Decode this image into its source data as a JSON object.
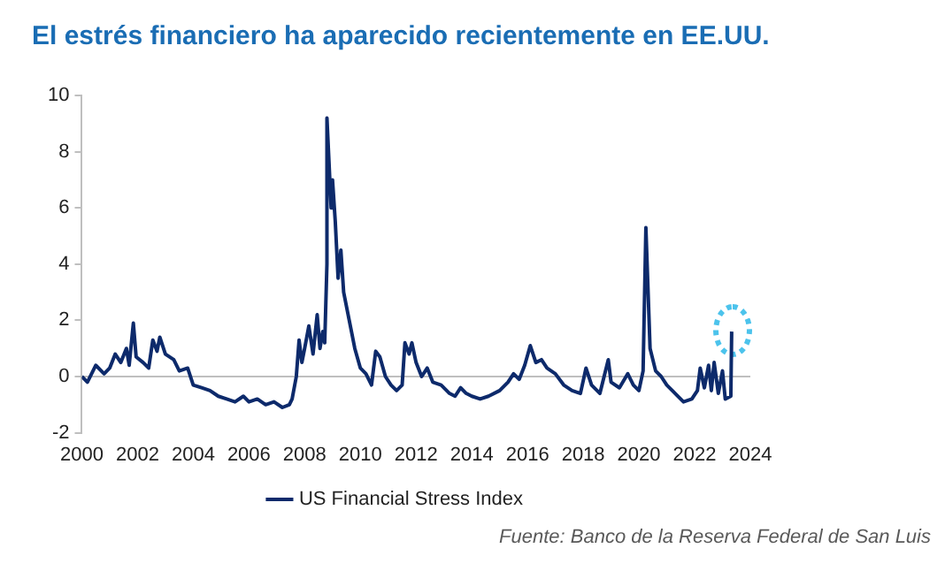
{
  "chart_data": {
    "type": "line",
    "title": "El estrés financiero ha aparecido recientemente en EE.UU.",
    "x": [
      2000.0,
      2000.2,
      2000.5,
      2000.8,
      2001.0,
      2001.2,
      2001.4,
      2001.6,
      2001.7,
      2001.85,
      2001.95,
      2002.2,
      2002.4,
      2002.55,
      2002.7,
      2002.8,
      2003.0,
      2003.3,
      2003.5,
      2003.8,
      2004.0,
      2004.3,
      2004.6,
      2004.9,
      2005.2,
      2005.5,
      2005.8,
      2006.0,
      2006.3,
      2006.6,
      2006.9,
      2007.2,
      2007.45,
      2007.55,
      2007.7,
      2007.8,
      2007.9,
      2008.0,
      2008.15,
      2008.3,
      2008.45,
      2008.55,
      2008.65,
      2008.72,
      2008.8,
      2008.8,
      2008.95,
      2009.0,
      2009.1,
      2009.2,
      2009.3,
      2009.4,
      2009.6,
      2009.8,
      2010.0,
      2010.2,
      2010.4,
      2010.55,
      2010.7,
      2010.9,
      2011.1,
      2011.3,
      2011.5,
      2011.6,
      2011.75,
      2011.85,
      2012.0,
      2012.2,
      2012.4,
      2012.6,
      2012.9,
      2013.2,
      2013.4,
      2013.6,
      2013.8,
      2014.0,
      2014.3,
      2014.6,
      2015.0,
      2015.3,
      2015.5,
      2015.7,
      2015.9,
      2016.1,
      2016.3,
      2016.5,
      2016.7,
      2017.0,
      2017.3,
      2017.6,
      2017.9,
      2018.1,
      2018.3,
      2018.6,
      2018.9,
      2019.0,
      2019.3,
      2019.6,
      2019.8,
      2020.0,
      2020.15,
      2020.25,
      2020.4,
      2020.6,
      2020.8,
      2021.0,
      2021.3,
      2021.6,
      2021.9,
      2022.1,
      2022.2,
      2022.35,
      2022.5,
      2022.6,
      2022.7,
      2022.85,
      2023.0,
      2023.1,
      2023.3,
      2023.33
    ],
    "series": [
      {
        "name": "US Financial Stress Index",
        "color": "#0d2a6b",
        "values": [
          0.0,
          -0.2,
          0.4,
          0.1,
          0.3,
          0.8,
          0.5,
          1.0,
          0.4,
          1.9,
          0.7,
          0.5,
          0.3,
          1.3,
          0.9,
          1.4,
          0.8,
          0.6,
          0.2,
          0.3,
          -0.3,
          -0.4,
          -0.5,
          -0.7,
          -0.8,
          -0.9,
          -0.7,
          -0.9,
          -0.8,
          -1.0,
          -0.9,
          -1.1,
          -1.0,
          -0.8,
          0.0,
          1.3,
          0.5,
          1.0,
          1.8,
          0.8,
          2.2,
          1.0,
          1.6,
          1.2,
          4.0,
          9.2,
          6.0,
          7.0,
          5.5,
          3.5,
          4.5,
          3.0,
          2.0,
          1.0,
          0.3,
          0.1,
          -0.3,
          0.9,
          0.7,
          0.0,
          -0.3,
          -0.5,
          -0.3,
          1.2,
          0.8,
          1.2,
          0.5,
          0.0,
          0.3,
          -0.2,
          -0.3,
          -0.6,
          -0.7,
          -0.4,
          -0.6,
          -0.7,
          -0.8,
          -0.7,
          -0.5,
          -0.2,
          0.1,
          -0.1,
          0.4,
          1.1,
          0.5,
          0.6,
          0.3,
          0.1,
          -0.3,
          -0.5,
          -0.6,
          0.3,
          -0.3,
          -0.6,
          0.6,
          -0.2,
          -0.4,
          0.1,
          -0.3,
          -0.5,
          0.2,
          5.3,
          1.0,
          0.2,
          0.0,
          -0.3,
          -0.6,
          -0.9,
          -0.8,
          -0.5,
          0.3,
          -0.4,
          0.4,
          -0.5,
          0.5,
          -0.6,
          0.2,
          -0.8,
          -0.7,
          1.6
        ]
      }
    ],
    "xlim": [
      2000,
      2024
    ],
    "xticks": [
      2000,
      2002,
      2004,
      2006,
      2008,
      2010,
      2012,
      2014,
      2016,
      2018,
      2020,
      2022,
      2024
    ],
    "ylim": [
      -2,
      10
    ],
    "yticks": [
      -2,
      0,
      2,
      4,
      6,
      8,
      10
    ],
    "ref_lines": [
      {
        "axis": "y",
        "value": 0,
        "color": "#bfbfbf"
      }
    ],
    "grid": false,
    "legend": "bottom",
    "marker": "none",
    "line_style": "solid",
    "annotations": [
      "Fuente: Banco de la Reserva Federal de San Luis"
    ]
  }
}
